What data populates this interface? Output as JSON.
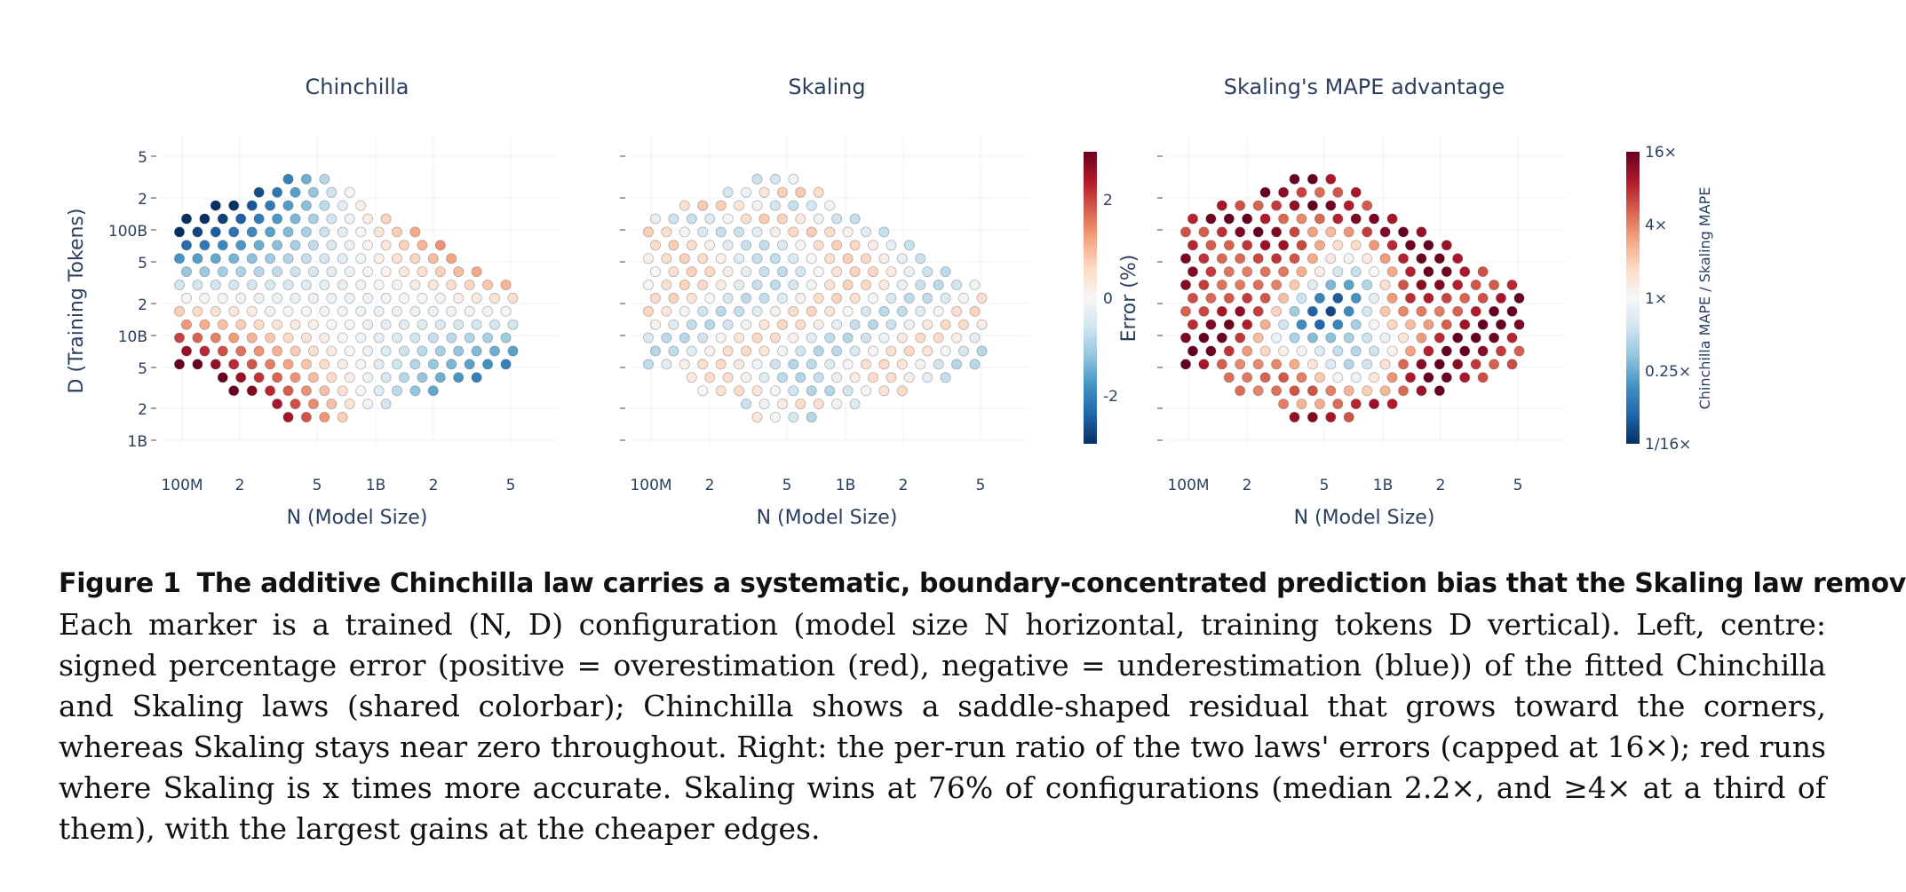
{
  "chart_data": [
    {
      "type": "scatter",
      "title": "Chinchilla",
      "xlabel": "N (Model Size)",
      "ylabel": "D (Training Tokens)",
      "x_scale": "log",
      "y_scale": "log",
      "x_tick_labels": [
        "100M",
        "2",
        "5",
        "1B",
        "2",
        "5"
      ],
      "y_tick_labels": [
        "5",
        "2",
        "100B",
        "5",
        "2",
        "10B",
        "5",
        "2",
        "1B"
      ],
      "color_metric": "signed percentage error (%)",
      "color_range": [
        -3,
        3
      ],
      "pattern": "saddle"
    },
    {
      "type": "scatter",
      "title": "Skaling",
      "xlabel": "N (Model Size)",
      "x_scale": "log",
      "y_scale": "log",
      "x_tick_labels": [
        "100M",
        "2",
        "5",
        "1B",
        "2",
        "5"
      ],
      "color_metric": "signed percentage error (%)",
      "color_range": [
        -3,
        3
      ],
      "pattern": "near-zero"
    },
    {
      "type": "scatter",
      "title": "Skaling's MAPE advantage",
      "xlabel": "N (Model Size)",
      "x_scale": "log",
      "y_scale": "log",
      "x_tick_labels": [
        "100M",
        "2",
        "5",
        "1B",
        "2",
        "5"
      ],
      "color_metric": "Chinchilla MAPE / Skaling MAPE",
      "color_range": [
        0.0625,
        16
      ],
      "pattern": "ratio"
    }
  ],
  "colorbars": {
    "error": {
      "title": "Error (%)",
      "ticks": [
        "2",
        "0",
        "-2"
      ]
    },
    "ratio": {
      "title": "Chinchilla MAPE / Skaling MAPE",
      "ticks": [
        "16×",
        "4×",
        "1×",
        "0.25×",
        "1/16×"
      ]
    }
  },
  "colors": {
    "scale": [
      "#053061",
      "#2166ac",
      "#4393c3",
      "#92c5de",
      "#d1e5f0",
      "#f7f7f7",
      "#fddbc7",
      "#f4a582",
      "#d6604d",
      "#b2182b",
      "#67001f"
    ],
    "axis_text": "#2a3f5f"
  },
  "caption": {
    "label": "Figure 1",
    "title": "The additive Chinchilla law carries a systematic, boundary-concentrated prediction bias that the Skaling law removes.",
    "body": "Each marker is a trained (N, D) configuration (model size N horizontal, training tokens D vertical). Left, centre: signed percentage error (positive = overestimation (red), negative = underestimation (blue)) of the fitted Chinchilla and Skaling laws (shared colorbar); Chinchilla shows a saddle-shaped residual that grows toward the corners, whereas Skaling stays near zero throughout. Right: the per-run ratio of the two laws' errors (capped at 16×); red runs where Skaling is x times more accurate. Skaling wins at 76% of configurations (median 2.2×, and ≥4× at a third of them), with the largest gains at the cheaper edges."
  }
}
